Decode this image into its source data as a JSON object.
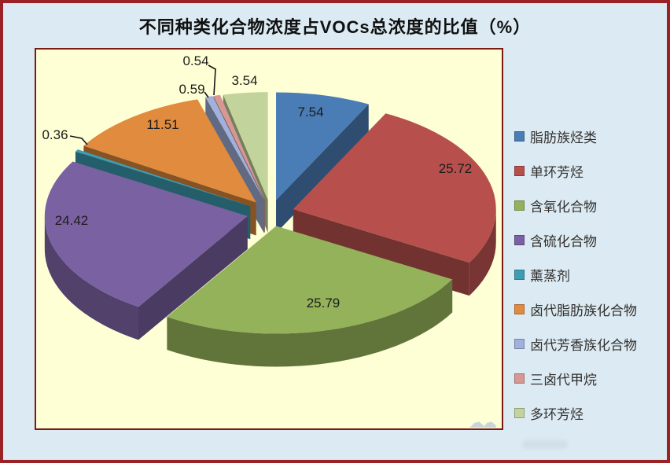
{
  "window": {
    "background": "#DCEBF3",
    "border_color": "#9A2226",
    "plot_background": "#FFFFD6",
    "plot_border_color": "#7B1A15"
  },
  "icons": {
    "watermark": "cloud-doodle"
  },
  "chart_data": {
    "type": "pie",
    "style": "3d-exploded",
    "title": "不同种类化合物浓度占VOCs总浓度的比值（%）",
    "unit": "%",
    "legend_position": "right",
    "grid": false,
    "start_angle_deg_clockwise_from_top": 0,
    "categories": [
      "脂肪族烃类",
      "单环芳烃",
      "含氧化合物",
      "含硫化合物",
      "薰蒸剂",
      "卤代脂肪族化合物",
      "卤代芳香族化合物",
      "三卤代甲烷",
      "多环芳烃"
    ],
    "values": [
      7.54,
      25.72,
      25.79,
      24.42,
      0.36,
      11.51,
      0.59,
      0.54,
      3.54
    ],
    "colors": [
      "#4A7CB5",
      "#B7504D",
      "#93B25A",
      "#7A62A2",
      "#3E9DB3",
      "#E08B3E",
      "#A2B1DB",
      "#D69795",
      "#C2D49B"
    ],
    "label_text_color": "#1c1c1c",
    "title_text_color": "#101010",
    "legend_text_color": "#33302e"
  }
}
